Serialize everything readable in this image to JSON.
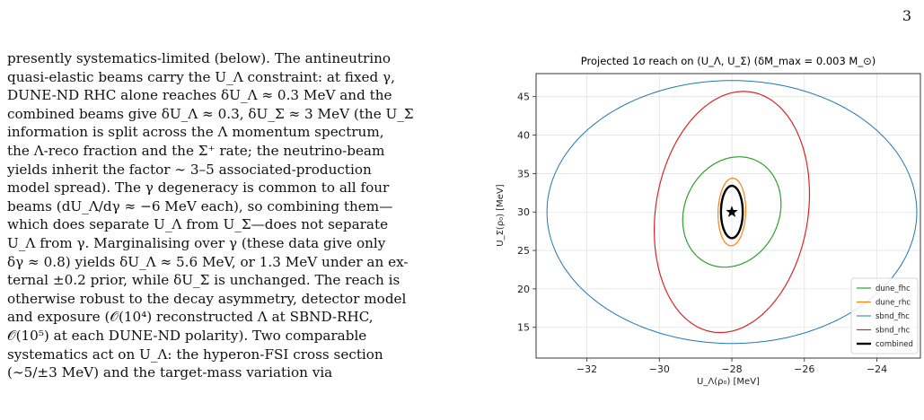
{
  "page": {
    "number": "3"
  },
  "text": {
    "lines": [
      "presently systematics-limited (below). The antineutrino",
      "quasi-elastic beams carry the U_Λ constraint: at fixed γ,",
      "DUNE-ND RHC alone reaches δU_Λ ≈ 0.3 MeV and the",
      "combined beams give δU_Λ ≈ 0.3, δU_Σ ≈ 3 MeV (the U_Σ",
      "information is split across the Λ momentum spectrum,",
      "the Λ-reco fraction and the Σ⁺ rate; the neutrino-beam",
      "yields inherit the factor ∼ 3–5 associated-production",
      "model spread). The γ degeneracy is common to all four",
      "beams (dU_Λ/dγ ≈ −6 MeV each), so combining them—",
      "which does separate U_Λ from U_Σ—does not separate",
      "U_Λ from γ. Marginalising over γ (these data give only",
      "δγ ≈ 0.8) yields δU_Λ ≈ 5.6 MeV, or 1.3 MeV under an ex-",
      "ternal ±0.2 prior, while δU_Σ is unchanged. The reach is",
      "otherwise robust to the decay asymmetry, detector model",
      "and exposure (𝒪(10⁴) reconstructed Λ at SBND-RHC,",
      "𝒪(10⁵) at each DUNE-ND polarity). Two comparable",
      "systematics act on U_Λ: the hyperon-FSI cross section",
      "(∼5/±3 MeV) and the target-mass variation via"
    ]
  },
  "chart_data": {
    "type": "scatter",
    "title": "Projected 1σ reach on (U_Λ, U_Σ)  (δM_max = 0.003 M_⊙)",
    "xlabel": "U_Λ(ρ₀) [MeV]",
    "ylabel": "U_Σ(ρ₀) [MeV]",
    "xlim": [
      -33.4,
      -22.8
    ],
    "ylim": [
      11.0,
      48.0
    ],
    "xticks": [
      -32,
      -30,
      -28,
      -26,
      -24
    ],
    "yticks": [
      15,
      20,
      25,
      30,
      35,
      40,
      45
    ],
    "grid": true,
    "legend_position": "lower-right",
    "best_fit": {
      "x": -28.0,
      "y": 30.0,
      "marker": "star"
    },
    "series": [
      {
        "name": "dune_fhc",
        "color": "#2ca02c",
        "center": [
          -28.0,
          30.0
        ],
        "width": [
          -29.3,
          -26.7
        ],
        "height": [
          22.6,
          37.4
        ],
        "theta": 0.45,
        "w": 2.2,
        "lw": 1.2
      },
      {
        "name": "dune_rhc",
        "color": "#ff7f0e",
        "center": [
          -28.0,
          30.0
        ],
        "width": [
          -28.38,
          -27.62
        ],
        "height": [
          25.6,
          34.4
        ],
        "theta": 0.03,
        "w": 0.36,
        "lw": 1.2
      },
      {
        "name": "sbnd_fhc",
        "color": "#1f77b4",
        "center": [
          -28.0,
          30.0
        ],
        "width": [
          -33.1,
          -22.9
        ],
        "height": [
          12.9,
          47.1
        ],
        "theta": 0.0,
        "w": 5.1,
        "lw": 1.0
      },
      {
        "name": "sbnd_rhc",
        "color": "#d62728",
        "center": [
          -28.0,
          30.0
        ],
        "width": [
          -30.1,
          -25.9
        ],
        "height": [
          14.2,
          45.8
        ],
        "theta": 0.16,
        "w": 1.25,
        "lw": 1.2
      },
      {
        "name": "combined",
        "color": "#000000",
        "center": [
          -28.0,
          30.0
        ],
        "width": [
          -28.3,
          -27.7
        ],
        "height": [
          26.6,
          33.4
        ],
        "theta": 0.0,
        "w": 0.3,
        "lw": 2.4
      }
    ]
  }
}
